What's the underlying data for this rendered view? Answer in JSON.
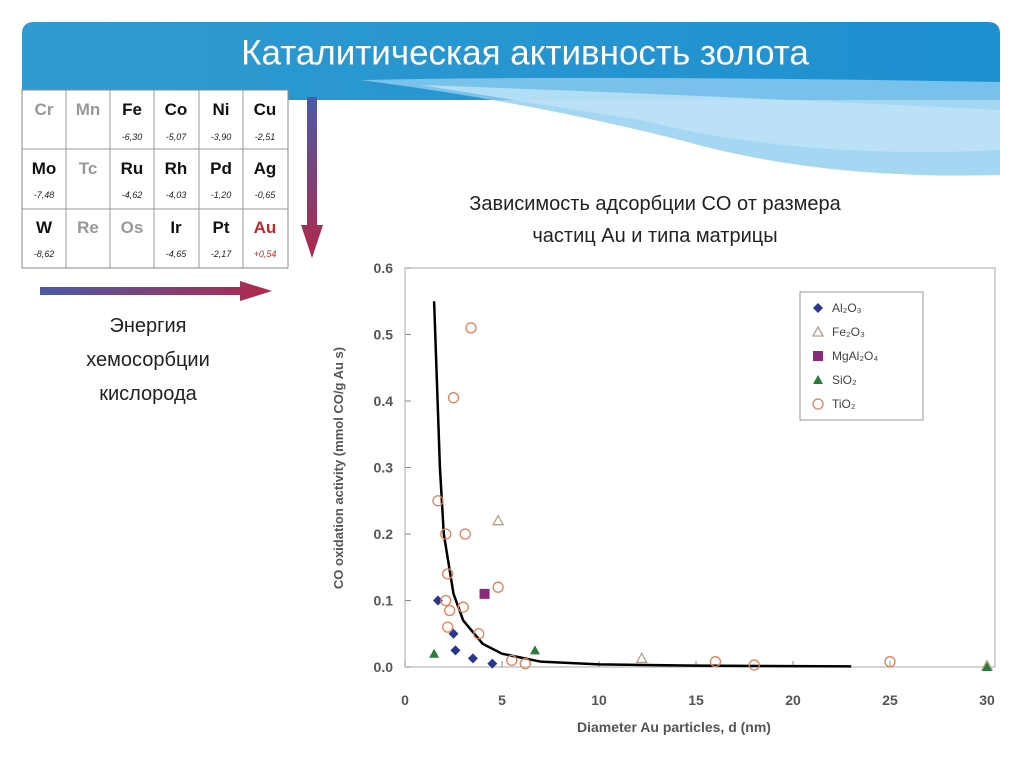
{
  "title": "Каталитическая активность золота",
  "table": {
    "rows": [
      [
        {
          "symbol": "Cr"
        },
        {
          "symbol": "Mn"
        },
        {
          "symbol": "Fe",
          "value": "-6,30"
        },
        {
          "symbol": "Co",
          "value": "-5,07"
        },
        {
          "symbol": "Ni",
          "value": "-3,90"
        },
        {
          "symbol": "Cu",
          "value": "-2,51"
        }
      ],
      [
        {
          "symbol": "Mo",
          "value": "-7,48"
        },
        {
          "symbol": "Tc"
        },
        {
          "symbol": "Ru",
          "value": "-4,62"
        },
        {
          "symbol": "Rh",
          "value": "-4,03"
        },
        {
          "symbol": "Pd",
          "value": "-1,20"
        },
        {
          "symbol": "Ag",
          "value": "-0,65"
        }
      ],
      [
        {
          "symbol": "W",
          "value": "-8,62"
        },
        {
          "symbol": "Re"
        },
        {
          "symbol": "Os"
        },
        {
          "symbol": "Ir",
          "value": "-4,65"
        },
        {
          "symbol": "Pt",
          "value": "-2,17"
        },
        {
          "symbol": "Au",
          "value": "+0,54"
        }
      ]
    ]
  },
  "energy_caption": [
    "Энергия",
    "хемосорбции",
    "кислорода"
  ],
  "chart_caption": [
    "Зависимость адсорбции CO от размера",
    "частиц Au и типа матрицы"
  ],
  "chart_data": {
    "type": "scatter",
    "x_label": "Diameter Au particles, d (nm)",
    "y_label": "CO oxidation activity (mmol CO/g Au s)",
    "xlim": [
      0,
      30
    ],
    "xticks": [
      0,
      5,
      10,
      15,
      20,
      25,
      30
    ],
    "ylim": [
      0,
      0.6
    ],
    "yticks": [
      {
        "value": 0,
        "label": "0.0"
      },
      0.1,
      0.2,
      0.3,
      0.4,
      0.5,
      0.6
    ],
    "legend": "upper right",
    "series": [
      {
        "name": "Al₂O₃",
        "color": "#2a3590",
        "marker": "diamond",
        "x": [
          1.7,
          2.5,
          2.6,
          3.5,
          4.5
        ],
        "values": [
          0.1,
          0.05,
          0.025,
          0.013,
          0.005
        ]
      },
      {
        "name": "Fe₂O₃",
        "color": "#b0a090",
        "marker": "triangle-open",
        "x": [
          4.8,
          12.2,
          30
        ],
        "values": [
          0.22,
          0.013,
          0.002
        ]
      },
      {
        "name": "MgAl₂O₄",
        "color": "#8a2a7a",
        "marker": "square",
        "x": [
          4.1
        ],
        "values": [
          0.11
        ]
      },
      {
        "name": "SiO₂",
        "color": "#2a7a3a",
        "marker": "triangle",
        "x": [
          1.5,
          6.7,
          30
        ],
        "values": [
          0.02,
          0.025,
          0
        ]
      },
      {
        "name": "TiO₂",
        "color": "#e0805a",
        "marker": "circle-open",
        "x": [
          3.4,
          2.5,
          1.7,
          2.1,
          3.1,
          2.2,
          2.1,
          2.3,
          3.0,
          2.2,
          3.8,
          4.8,
          5.5,
          6.2,
          16,
          25,
          18
        ],
        "values": [
          0.51,
          0.405,
          0.25,
          0.2,
          0.2,
          0.14,
          0.1,
          0.085,
          0.09,
          0.06,
          0.05,
          0.12,
          0.01,
          0.005,
          0.008,
          0.008,
          0.003
        ]
      }
    ],
    "fit": {
      "color": "#000000",
      "x": [
        1.5,
        1.8,
        2.0,
        2.5,
        3,
        4,
        5,
        7,
        10,
        15,
        23
      ],
      "values": [
        0.55,
        0.3,
        0.2,
        0.11,
        0.07,
        0.035,
        0.02,
        0.008,
        0.004,
        0.002,
        0.001
      ]
    }
  }
}
